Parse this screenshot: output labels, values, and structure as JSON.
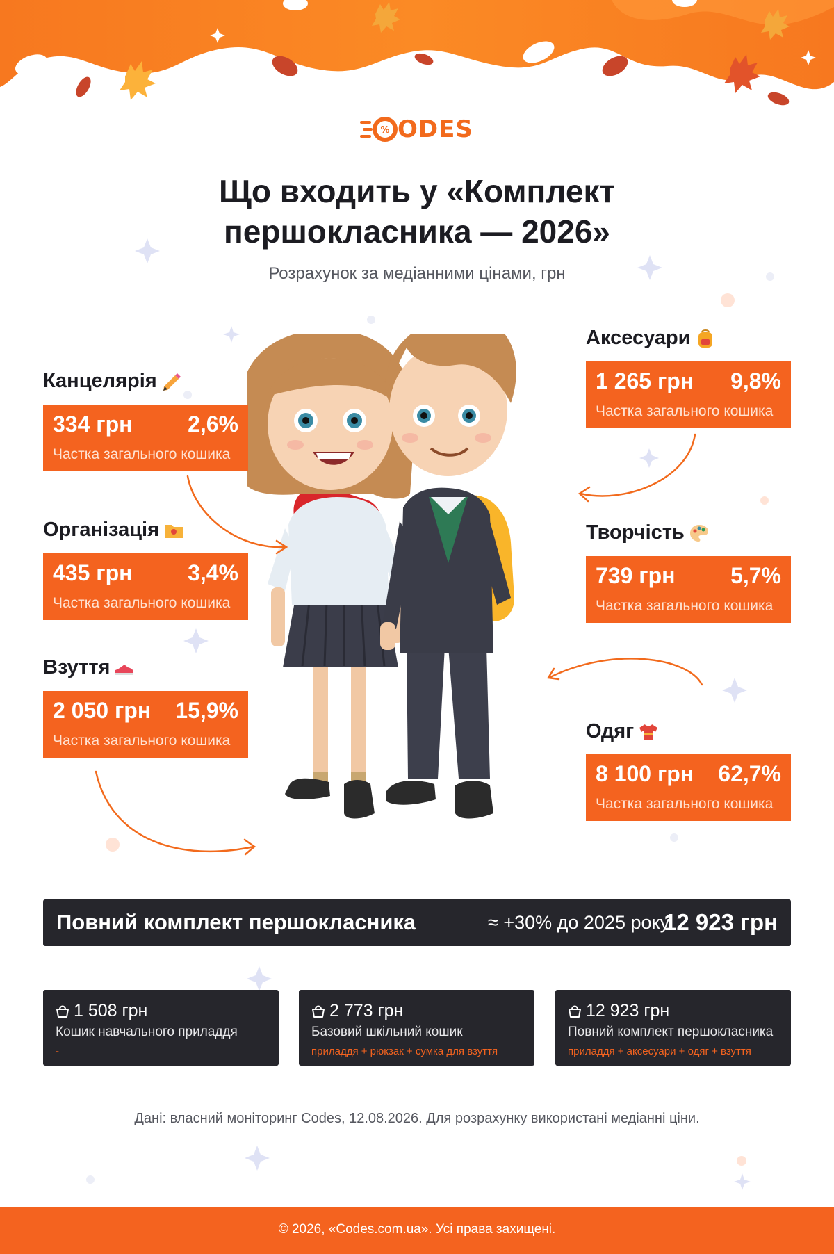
{
  "brand": {
    "logo_text": "ODES",
    "accent": "#f4631f",
    "dark": "#26262c"
  },
  "title": "Що входить у «Комплект першокласника — 2026»",
  "subtitle": "Розрахунок за медіанними цінами, грн",
  "categories": {
    "stationery": {
      "label": "Канцелярія",
      "icon": "pencil-icon",
      "price": "334 грн",
      "share": "2,6%",
      "note": "Частка загального кошика"
    },
    "organization": {
      "label": "Організація",
      "icon": "folder-icon",
      "price": "435 грн",
      "share": "3,4%",
      "note": "Частка загального кошика"
    },
    "shoes": {
      "label": "Взуття",
      "icon": "sneaker-icon",
      "price": "2 050 грн",
      "share": "15,9%",
      "note": "Частка загального кошика"
    },
    "accessories": {
      "label": "Аксесуари",
      "icon": "backpack-icon",
      "price": "1 265 грн",
      "share": "9,8%",
      "note": "Частка загального кошика"
    },
    "creativity": {
      "label": "Творчість",
      "icon": "palette-icon",
      "price": "739 грн",
      "share": "5,7%",
      "note": "Частка загального кошика"
    },
    "clothing": {
      "label": "Одяг",
      "icon": "tshirt-icon",
      "price": "8 100 грн",
      "share": "62,7%",
      "note": "Частка загального кошика"
    }
  },
  "total": {
    "label": "Повний комплект першокласника",
    "growth": "≈ +30% до 2025 року",
    "value": "12 923 грн"
  },
  "baskets": [
    {
      "price": "1 508 грн",
      "name": "Кошик навчального приладдя",
      "sub": "-",
      "icon": "basket-icon"
    },
    {
      "price": "2 773 грн",
      "name": "Базовий шкільний кошик",
      "sub": "приладдя + рюкзак + сумка для взуття",
      "icon": "basket-icon"
    },
    {
      "price": "12 923 грн",
      "name": "Повний комплект першокласника",
      "sub": "приладдя + аксесуари + одяг + взуття",
      "icon": "basket-icon"
    }
  ],
  "source": "Дані: власний моніторинг Codes, 12.08.2026. Для розрахунку використані медіанні ціни.",
  "footer": "© 2026, «Codes.com.ua». Усі права захищені."
}
